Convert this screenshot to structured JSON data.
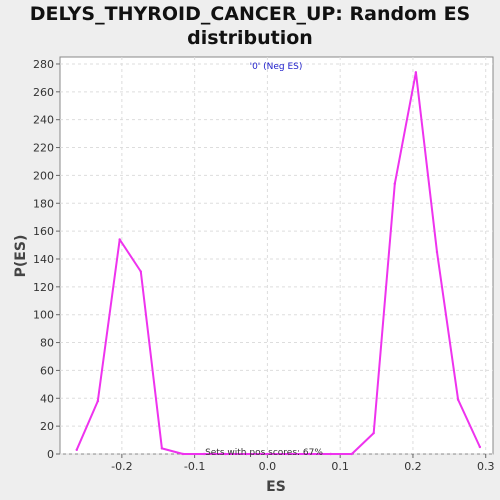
{
  "chart_data": {
    "type": "line",
    "title": "DELYS_THYROID_CANCER_UP: Random ES distribution",
    "xlabel": "ES",
    "ylabel": "P(ES)",
    "xlim": [
      -0.285,
      0.31
    ],
    "ylim": [
      0,
      285
    ],
    "x_ticks": [
      -0.2,
      -0.1,
      0.0,
      0.1,
      0.2,
      0.3
    ],
    "x_tick_labels": [
      "-0.2",
      "-0.1",
      "0.0",
      "0.1",
      "0.2",
      "0.3"
    ],
    "y_ticks": [
      0,
      20,
      40,
      60,
      80,
      100,
      120,
      140,
      160,
      180,
      200,
      220,
      240,
      260,
      280
    ],
    "grid": true,
    "annotations": {
      "top": "'0' (Neg ES)",
      "bottom": "Sets with pos scores: 67%"
    },
    "series": [
      {
        "color": "#ee33ee",
        "x": [
          -0.262,
          -0.233,
          -0.203,
          -0.174,
          -0.145,
          -0.116,
          -0.087,
          -0.058,
          -0.029,
          0.0,
          0.029,
          0.058,
          0.087,
          0.116,
          0.146,
          0.175,
          0.204,
          0.233,
          0.262,
          0.292
        ],
        "y": [
          3,
          38,
          154,
          131,
          4,
          0,
          0,
          0,
          0,
          0,
          0,
          0,
          0,
          0,
          15,
          194,
          274,
          145,
          39,
          5
        ]
      }
    ]
  }
}
